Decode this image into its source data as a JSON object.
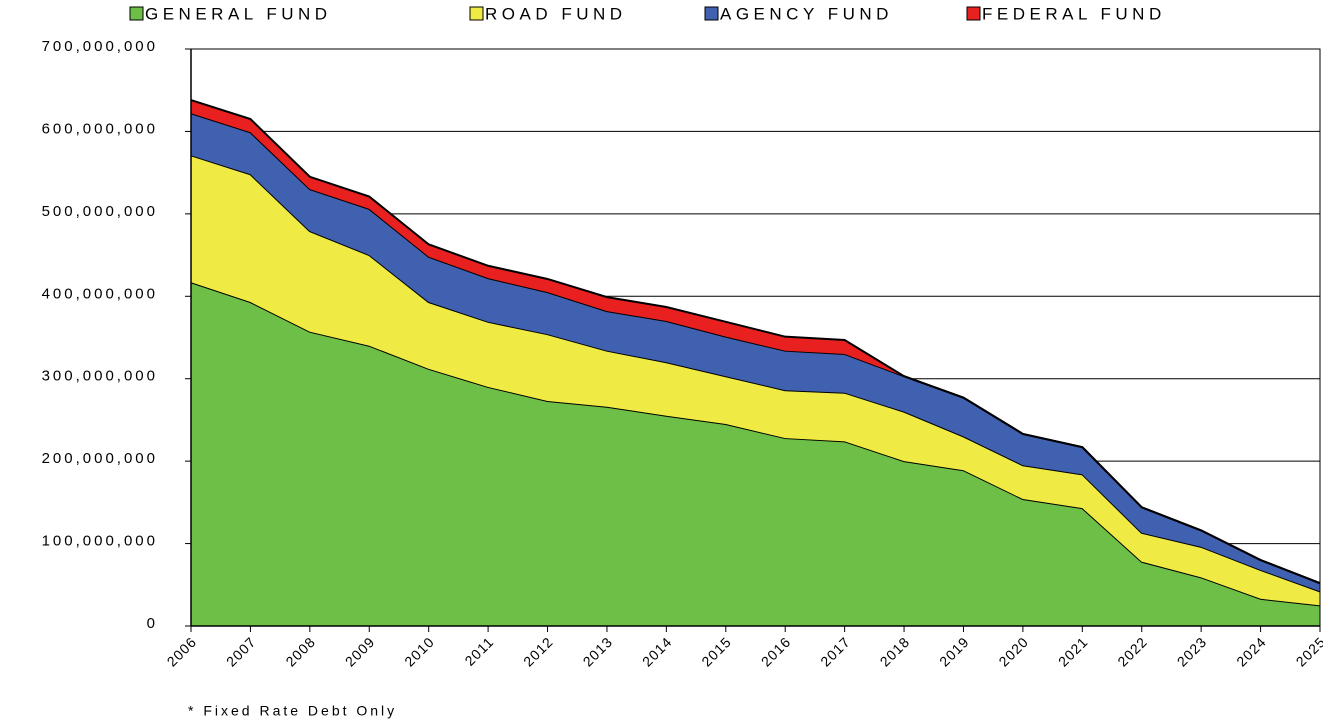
{
  "chart_data": {
    "type": "stacked_area",
    "categories": [
      "2006",
      "2007",
      "2008",
      "2009",
      "2010",
      "2011",
      "2012",
      "2013",
      "2014",
      "2015",
      "2016",
      "2017",
      "2018",
      "2019",
      "2020",
      "2021",
      "2022",
      "2023",
      "2024",
      "2025"
    ],
    "series": [
      {
        "name": "GENERAL FUND",
        "color": "#6dbf47",
        "values": [
          417000000,
          393000000,
          357000000,
          340000000,
          312000000,
          290000000,
          273000000,
          266000000,
          255000000,
          245000000,
          228000000,
          224000000,
          200000000,
          189000000,
          154000000,
          143000000,
          78000000,
          59000000,
          33000000,
          25000000
        ]
      },
      {
        "name": "ROAD FUND",
        "color": "#f0eb44",
        "values": [
          154000000,
          155000000,
          122000000,
          110000000,
          81000000,
          79000000,
          81000000,
          68000000,
          65000000,
          58000000,
          58000000,
          59000000,
          60000000,
          41000000,
          41000000,
          41000000,
          35000000,
          37000000,
          35000000,
          17000000
        ]
      },
      {
        "name": "AGENCY FUND",
        "color": "#4060b0",
        "values": [
          51000000,
          51000000,
          51000000,
          56000000,
          55000000,
          53000000,
          51000000,
          48000000,
          50000000,
          48000000,
          48000000,
          47000000,
          43000000,
          47000000,
          38000000,
          33000000,
          31000000,
          20000000,
          12000000,
          10000000
        ]
      },
      {
        "name": "FEDERAL FUND",
        "color": "#e82020",
        "values": [
          16000000,
          16000000,
          15000000,
          15000000,
          15000000,
          15000000,
          16000000,
          17000000,
          17000000,
          18000000,
          17000000,
          17000000,
          0,
          0,
          0,
          0,
          0,
          0,
          0,
          0
        ]
      }
    ],
    "ylim": [
      0,
      700000000
    ],
    "yticks": [
      0,
      {
        "value": 100000000,
        "label": "100,000,000"
      },
      {
        "value": 200000000,
        "label": "200,000,000"
      },
      {
        "value": 300000000,
        "label": "300,000,000"
      },
      {
        "value": 400000000,
        "label": "400,000,000"
      },
      {
        "value": 500000000,
        "label": "500,000,000"
      },
      {
        "value": 600000000,
        "label": "600,000,000"
      },
      {
        "value": 700000000,
        "label": "700,000,000"
      }
    ],
    "grid": true,
    "legend": "top",
    "annotation": "* Fixed Rate Debt Only"
  }
}
